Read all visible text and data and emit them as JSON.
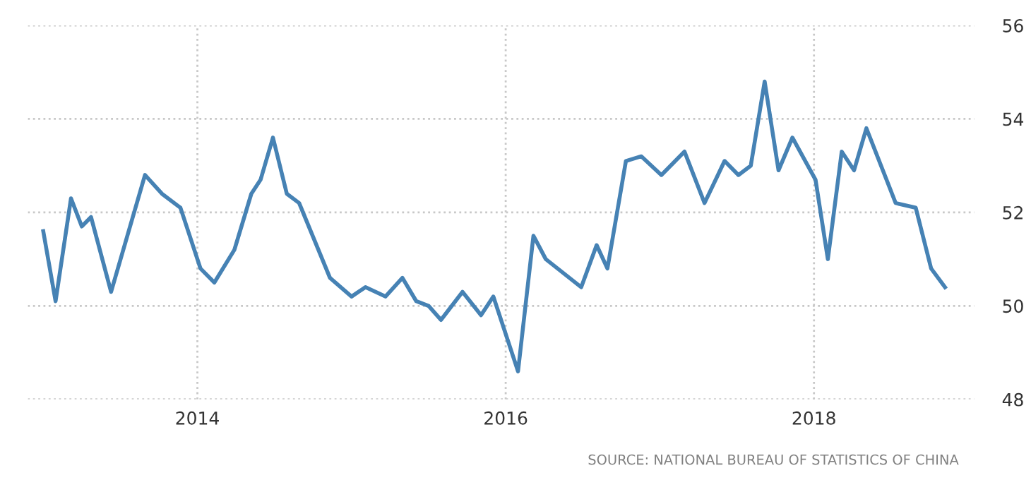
{
  "chart_data": {
    "type": "line",
    "x": [
      2013.0,
      2013.08,
      2013.18,
      2013.25,
      2013.31,
      2013.44,
      2013.66,
      2013.77,
      2013.89,
      2014.02,
      2014.11,
      2014.24,
      2014.35,
      2014.41,
      2014.49,
      2014.58,
      2014.66,
      2014.86,
      2015.0,
      2015.09,
      2015.22,
      2015.33,
      2015.42,
      2015.5,
      2015.58,
      2015.72,
      2015.84,
      2015.92,
      2016.08,
      2016.18,
      2016.26,
      2016.49,
      2016.59,
      2016.66,
      2016.78,
      2016.88,
      2017.01,
      2017.16,
      2017.29,
      2017.42,
      2017.51,
      2017.59,
      2017.68,
      2017.77,
      2017.86,
      2018.01,
      2018.09,
      2018.18,
      2018.26,
      2018.34,
      2018.53,
      2018.66,
      2018.76,
      2018.85
    ],
    "series": [
      {
        "color": "#4682b4",
        "values": [
          51.6,
          50.1,
          52.3,
          51.7,
          51.9,
          50.3,
          52.8,
          52.4,
          52.1,
          50.8,
          50.5,
          51.2,
          52.4,
          52.7,
          53.6,
          52.4,
          52.2,
          50.6,
          50.2,
          50.4,
          50.2,
          50.6,
          50.1,
          50.0,
          49.7,
          50.3,
          49.8,
          50.2,
          48.6,
          51.5,
          51.0,
          50.4,
          51.3,
          50.8,
          53.1,
          53.2,
          52.8,
          53.3,
          52.2,
          53.1,
          52.8,
          53.0,
          54.8,
          52.9,
          53.6,
          52.7,
          51.0,
          53.3,
          52.9,
          53.8,
          52.2,
          52.1,
          50.8,
          50.4
        ]
      }
    ],
    "xlim": [
      2012.9,
      2019.04
    ],
    "xticks": [
      2014,
      2016,
      2018
    ],
    "ylim": [
      48,
      56
    ],
    "yticks": [
      48,
      50,
      52,
      54,
      56
    ],
    "grid": true,
    "line_style": "solid",
    "marker": "none",
    "legend": false,
    "annotations": [
      "SOURCE: NATIONAL BUREAU OF STATISTICS OF CHINA"
    ]
  }
}
